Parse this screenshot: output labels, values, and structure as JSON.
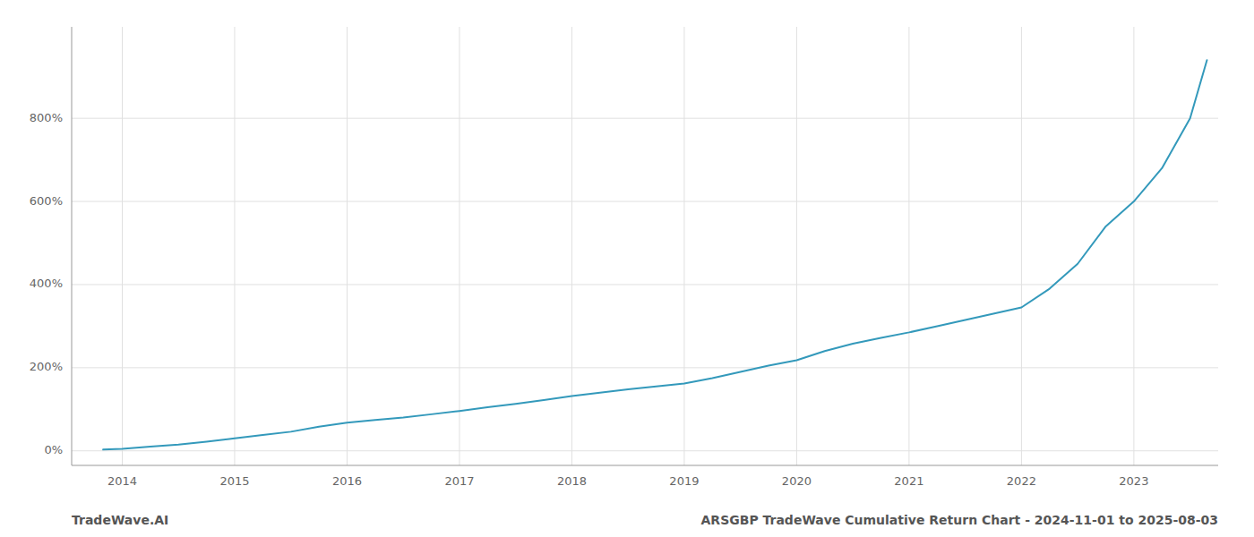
{
  "chart_data": {
    "type": "line",
    "x": [
      2013.83,
      2014.0,
      2014.25,
      2014.5,
      2014.75,
      2015.0,
      2015.25,
      2015.5,
      2015.75,
      2016.0,
      2016.25,
      2016.5,
      2016.75,
      2017.0,
      2017.25,
      2017.5,
      2017.75,
      2018.0,
      2018.25,
      2018.5,
      2018.75,
      2019.0,
      2019.25,
      2019.5,
      2019.75,
      2020.0,
      2020.25,
      2020.5,
      2020.75,
      2021.0,
      2021.25,
      2021.5,
      2021.75,
      2022.0,
      2022.25,
      2022.5,
      2022.75,
      2023.0,
      2023.25,
      2023.5,
      2023.65
    ],
    "values": [
      3,
      5,
      10,
      15,
      22,
      30,
      38,
      46,
      58,
      68,
      74,
      80,
      88,
      96,
      105,
      113,
      122,
      132,
      140,
      148,
      155,
      162,
      175,
      190,
      205,
      218,
      240,
      258,
      272,
      285,
      300,
      315,
      330,
      345,
      390,
      450,
      540,
      600,
      680,
      800,
      940
    ],
    "color": "#3399bb",
    "xlim": [
      2013.55,
      2023.75
    ],
    "xticks": [
      2014,
      2015,
      2016,
      2017,
      2018,
      2019,
      2020,
      2021,
      2022,
      2023
    ],
    "ylim": [
      -35,
      1020
    ],
    "yticks": [
      {
        "value": 0,
        "label": "0%"
      },
      {
        "value": 200,
        "label": "200%"
      },
      {
        "value": 400,
        "label": "400%"
      },
      {
        "value": 600,
        "label": "600%"
      },
      {
        "value": 800,
        "label": "800%"
      }
    ],
    "grid": true,
    "annotations": [
      "TradeWave.AI",
      "ARSGBP TradeWave Cumulative Return Chart - 2024-11-01 to 2025-08-03"
    ]
  }
}
